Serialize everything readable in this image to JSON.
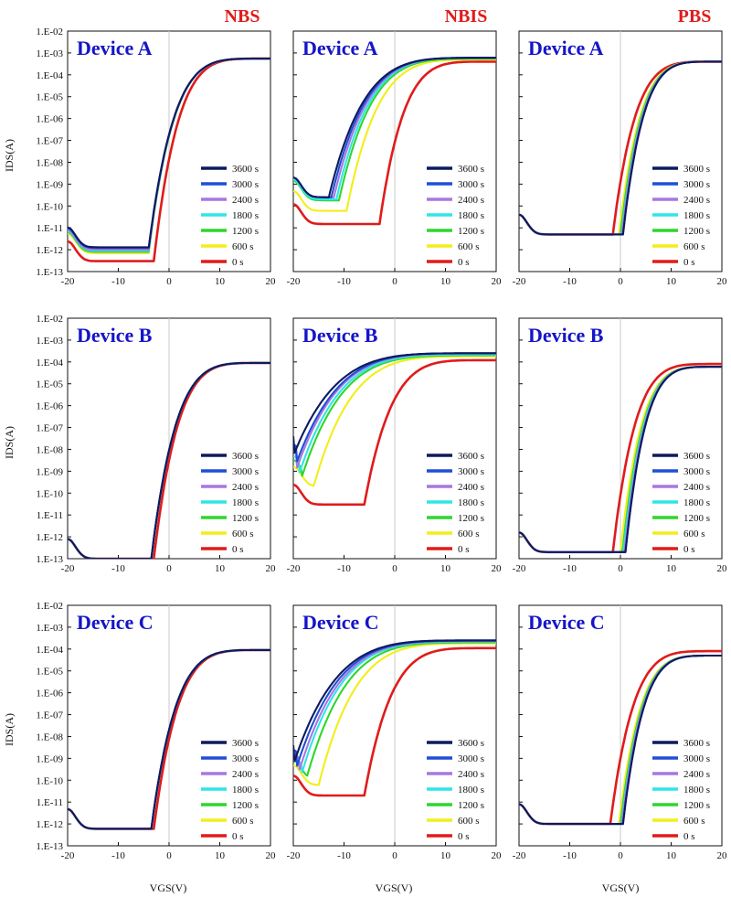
{
  "columns": [
    "NBS",
    "NBIS",
    "PBS"
  ],
  "devices": [
    "Device A",
    "Device B",
    "Device C"
  ],
  "axes": {
    "x_label": "VGS(V)",
    "y_label": "IDS(A)",
    "x_ticks": [
      "-20",
      "-10",
      "0",
      "10",
      "20"
    ],
    "y_ticks": [
      "1.E-02",
      "1.E-03",
      "1.E-04",
      "1.E-05",
      "1.E-06",
      "1.E-07",
      "1.E-08",
      "1.E-09",
      "1.E-10",
      "1.E-11",
      "1.E-12",
      "1.E-13"
    ]
  },
  "chart_data": {
    "type": "line",
    "x_range": [
      -20,
      20
    ],
    "y_range": [
      1e-13,
      0.01
    ],
    "y_scale": "log",
    "grid": false,
    "legend_placement": "bottom-right",
    "legend": [
      {
        "name": "3600 s",
        "color": "#0d1a5e"
      },
      {
        "name": "3000 s",
        "color": "#1f4fd6"
      },
      {
        "name": "2400 s",
        "color": "#a877e0"
      },
      {
        "name": "1800 s",
        "color": "#2ee6e6"
      },
      {
        "name": "1200 s",
        "color": "#2ed62e"
      },
      {
        "name": "600 s",
        "color": "#f2ee1a"
      },
      {
        "name": "0 s",
        "color": "#e01b1b"
      }
    ],
    "panels": [
      {
        "device": "Device A",
        "stress": "NBS",
        "vth": [
          -4,
          -4,
          -4,
          -4,
          -4,
          -4,
          -3
        ],
        "off": [
          1.3e-12,
          1.2e-12,
          1e-12,
          9e-13,
          8e-13,
          7e-13,
          3e-13
        ],
        "on": [
          0.00055,
          0.00055,
          0.00055,
          0.00055,
          0.00055,
          0.00055,
          0.00055
        ]
      },
      {
        "device": "Device A",
        "stress": "NBIS",
        "vth": [
          -13,
          -12.5,
          -12,
          -11.5,
          -11,
          -9.5,
          -3
        ],
        "off": [
          2.5e-10,
          2.5e-10,
          2.5e-10,
          2e-10,
          1.8e-10,
          6e-11,
          1.5e-11
        ],
        "on": [
          0.0006,
          0.0006,
          0.0006,
          0.0006,
          0.00055,
          0.0005,
          0.0004
        ]
      },
      {
        "device": "Device A",
        "stress": "PBS",
        "vth": [
          0.5,
          0.5,
          0.3,
          0.2,
          0,
          -0.3,
          -1.5
        ],
        "off": [
          5e-12,
          5e-12,
          5e-12,
          5e-12,
          5e-12,
          5e-12,
          5e-12
        ],
        "on": [
          0.0004,
          0.0004,
          0.0004,
          0.0004,
          0.0004,
          0.0004,
          0.0004
        ]
      },
      {
        "device": "Device B",
        "stress": "NBS",
        "vth": [
          -3.5,
          -3.5,
          -3.5,
          -3.5,
          -3.5,
          -3.5,
          -3
        ],
        "off": [
          1e-13,
          1e-13,
          1e-13,
          1e-13,
          1e-13,
          1e-13,
          1e-13
        ],
        "on": [
          9e-05,
          9e-05,
          9e-05,
          9e-05,
          9e-05,
          9e-05,
          9e-05
        ]
      },
      {
        "device": "Device B",
        "stress": "NBIS",
        "vth": [
          -20,
          -19.5,
          -19.5,
          -19,
          -18.5,
          -16,
          -6
        ],
        "off": [
          5e-09,
          2e-09,
          1e-09,
          6e-10,
          4e-10,
          2e-10,
          3e-11
        ],
        "on": [
          0.00025,
          0.00025,
          0.00024,
          0.00022,
          0.0002,
          0.00018,
          0.00012
        ]
      },
      {
        "device": "Device B",
        "stress": "PBS",
        "vth": [
          1,
          1,
          0.8,
          0.6,
          0.4,
          0,
          -1.5
        ],
        "off": [
          2e-13,
          2e-13,
          2e-13,
          2e-13,
          2e-13,
          2e-13,
          2e-13
        ],
        "on": [
          6e-05,
          6e-05,
          6e-05,
          6e-05,
          6e-05,
          6e-05,
          8e-05
        ]
      },
      {
        "device": "Device C",
        "stress": "NBS",
        "vth": [
          -3.5,
          -3.5,
          -3.5,
          -3.5,
          -3.5,
          -3.5,
          -3
        ],
        "off": [
          6e-13,
          6e-13,
          6e-13,
          6e-13,
          6e-13,
          6e-13,
          6e-13
        ],
        "on": [
          9e-05,
          9e-05,
          9e-05,
          9e-05,
          9e-05,
          9e-05,
          9e-05
        ]
      },
      {
        "device": "Device C",
        "stress": "NBIS",
        "vth": [
          -20,
          -19.5,
          -19,
          -18.5,
          -17.5,
          -15,
          -6
        ],
        "off": [
          5e-10,
          3e-10,
          2e-10,
          1.5e-10,
          1e-10,
          6e-11,
          2e-11
        ],
        "on": [
          0.00025,
          0.00024,
          0.00023,
          0.00022,
          0.0002,
          0.00018,
          0.00011
        ]
      },
      {
        "device": "Device C",
        "stress": "PBS",
        "vth": [
          0.5,
          0.5,
          0.3,
          0.2,
          0,
          -0.3,
          -2
        ],
        "off": [
          1e-12,
          1e-12,
          1e-12,
          1e-12,
          1e-12,
          1e-12,
          1e-12
        ],
        "on": [
          5e-05,
          5e-05,
          5e-05,
          5e-05,
          5e-05,
          5e-05,
          8e-05
        ]
      }
    ]
  }
}
